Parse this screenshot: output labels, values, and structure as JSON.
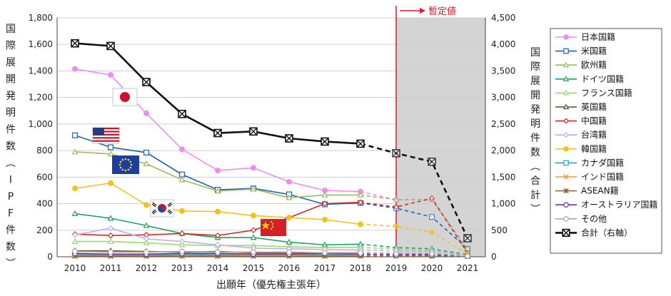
{
  "chart_data": {
    "type": "line",
    "x": [
      "2010",
      "2011",
      "2012",
      "2013",
      "2014",
      "2015",
      "2016",
      "2017",
      "2018",
      "2019",
      "2020",
      "2021"
    ],
    "xlabel": "出願年（優先権主張年）",
    "ylabel_left": "国際展開発明件数（IPF件数）",
    "ylabel_right": "国際展開発明件数（合計）",
    "ylim_left": [
      0,
      1800
    ],
    "ylim_right": [
      0,
      4500
    ],
    "yticks_left": [
      "0",
      "200",
      "400",
      "600",
      "800",
      "1,000",
      "1,200",
      "1,400",
      "1,600",
      "1,800"
    ],
    "yticks_right": [
      "0",
      "500",
      "1,000",
      "1,500",
      "2,000",
      "2,500",
      "3,000",
      "3,500",
      "4,000",
      "4,500"
    ],
    "provisional_label": "暫定値",
    "provisional_from": "2019",
    "series": [
      {
        "name": "日本国籍",
        "color": "#f08cf0",
        "marker": "circle",
        "values": [
          1415,
          1370,
          1080,
          810,
          650,
          670,
          565,
          500,
          490,
          430,
          430,
          50
        ]
      },
      {
        "name": "米国籍",
        "color": "#1f62b4",
        "marker": "square",
        "values": [
          915,
          825,
          785,
          620,
          505,
          515,
          470,
          395,
          405,
          365,
          300,
          60
        ]
      },
      {
        "name": "欧州籍",
        "color": "#9bba59",
        "marker": "triangle",
        "values": [
          790,
          775,
          700,
          580,
          495,
          510,
          445,
          465,
          465,
          430,
          430,
          60
        ]
      },
      {
        "name": "ドイツ国籍",
        "color": "#1aa35e",
        "marker": "triangle",
        "values": [
          325,
          290,
          235,
          175,
          145,
          145,
          110,
          90,
          95,
          70,
          60,
          15
        ]
      },
      {
        "name": "フランス国籍",
        "color": "#8ee06a",
        "marker": "triangle",
        "values": [
          115,
          115,
          105,
          90,
          85,
          85,
          75,
          70,
          70,
          60,
          45,
          10
        ]
      },
      {
        "name": "英国籍",
        "color": "#5a4a2a",
        "marker": "triangle",
        "values": [
          45,
          45,
          40,
          35,
          40,
          30,
          30,
          30,
          30,
          25,
          20,
          5
        ]
      },
      {
        "name": "中国籍",
        "color": "#d02828",
        "marker": "diamond",
        "values": [
          170,
          160,
          165,
          175,
          160,
          200,
          295,
          400,
          410,
          375,
          440,
          30
        ]
      },
      {
        "name": "台湾籍",
        "color": "#c8a8ec",
        "marker": "diamond",
        "values": [
          165,
          215,
          135,
          115,
          90,
          65,
          60,
          55,
          50,
          45,
          40,
          10
        ]
      },
      {
        "name": "韓国籍",
        "color": "#f2c21b",
        "marker": "circle",
        "values": [
          515,
          555,
          390,
          345,
          340,
          310,
          295,
          280,
          245,
          230,
          185,
          20
        ]
      },
      {
        "name": "カナダ国籍",
        "color": "#2aa0d8",
        "marker": "square",
        "values": [
          15,
          15,
          15,
          20,
          15,
          20,
          20,
          15,
          20,
          15,
          10,
          5
        ]
      },
      {
        "name": "インド国籍",
        "color": "#f29b3a",
        "marker": "x",
        "values": [
          10,
          10,
          10,
          10,
          10,
          15,
          15,
          10,
          10,
          10,
          10,
          5
        ]
      },
      {
        "name": "ASEAN籍",
        "color": "#8a6a3a",
        "marker": "star",
        "values": [
          5,
          5,
          5,
          5,
          5,
          5,
          5,
          5,
          5,
          5,
          5,
          5
        ]
      },
      {
        "name": "オーストラリア国籍",
        "color": "#7030a0",
        "marker": "circle",
        "values": [
          25,
          20,
          20,
          25,
          25,
          20,
          20,
          25,
          20,
          15,
          15,
          5
        ]
      },
      {
        "name": "その他",
        "color": "#a8a8a8",
        "marker": "circle",
        "values": [
          40,
          35,
          35,
          40,
          35,
          35,
          35,
          30,
          30,
          25,
          25,
          5
        ]
      },
      {
        "name": "合計（右軸）",
        "color": "#111111",
        "marker": "boxx",
        "axis": "right",
        "values": [
          4020,
          3970,
          3290,
          2690,
          2330,
          2360,
          2230,
          2170,
          2130,
          1950,
          1790,
          350
        ]
      }
    ]
  },
  "flags": [
    "japan-flag-icon",
    "us-flag-icon",
    "eu-flag-icon",
    "korea-flag-icon",
    "china-flag-icon"
  ]
}
